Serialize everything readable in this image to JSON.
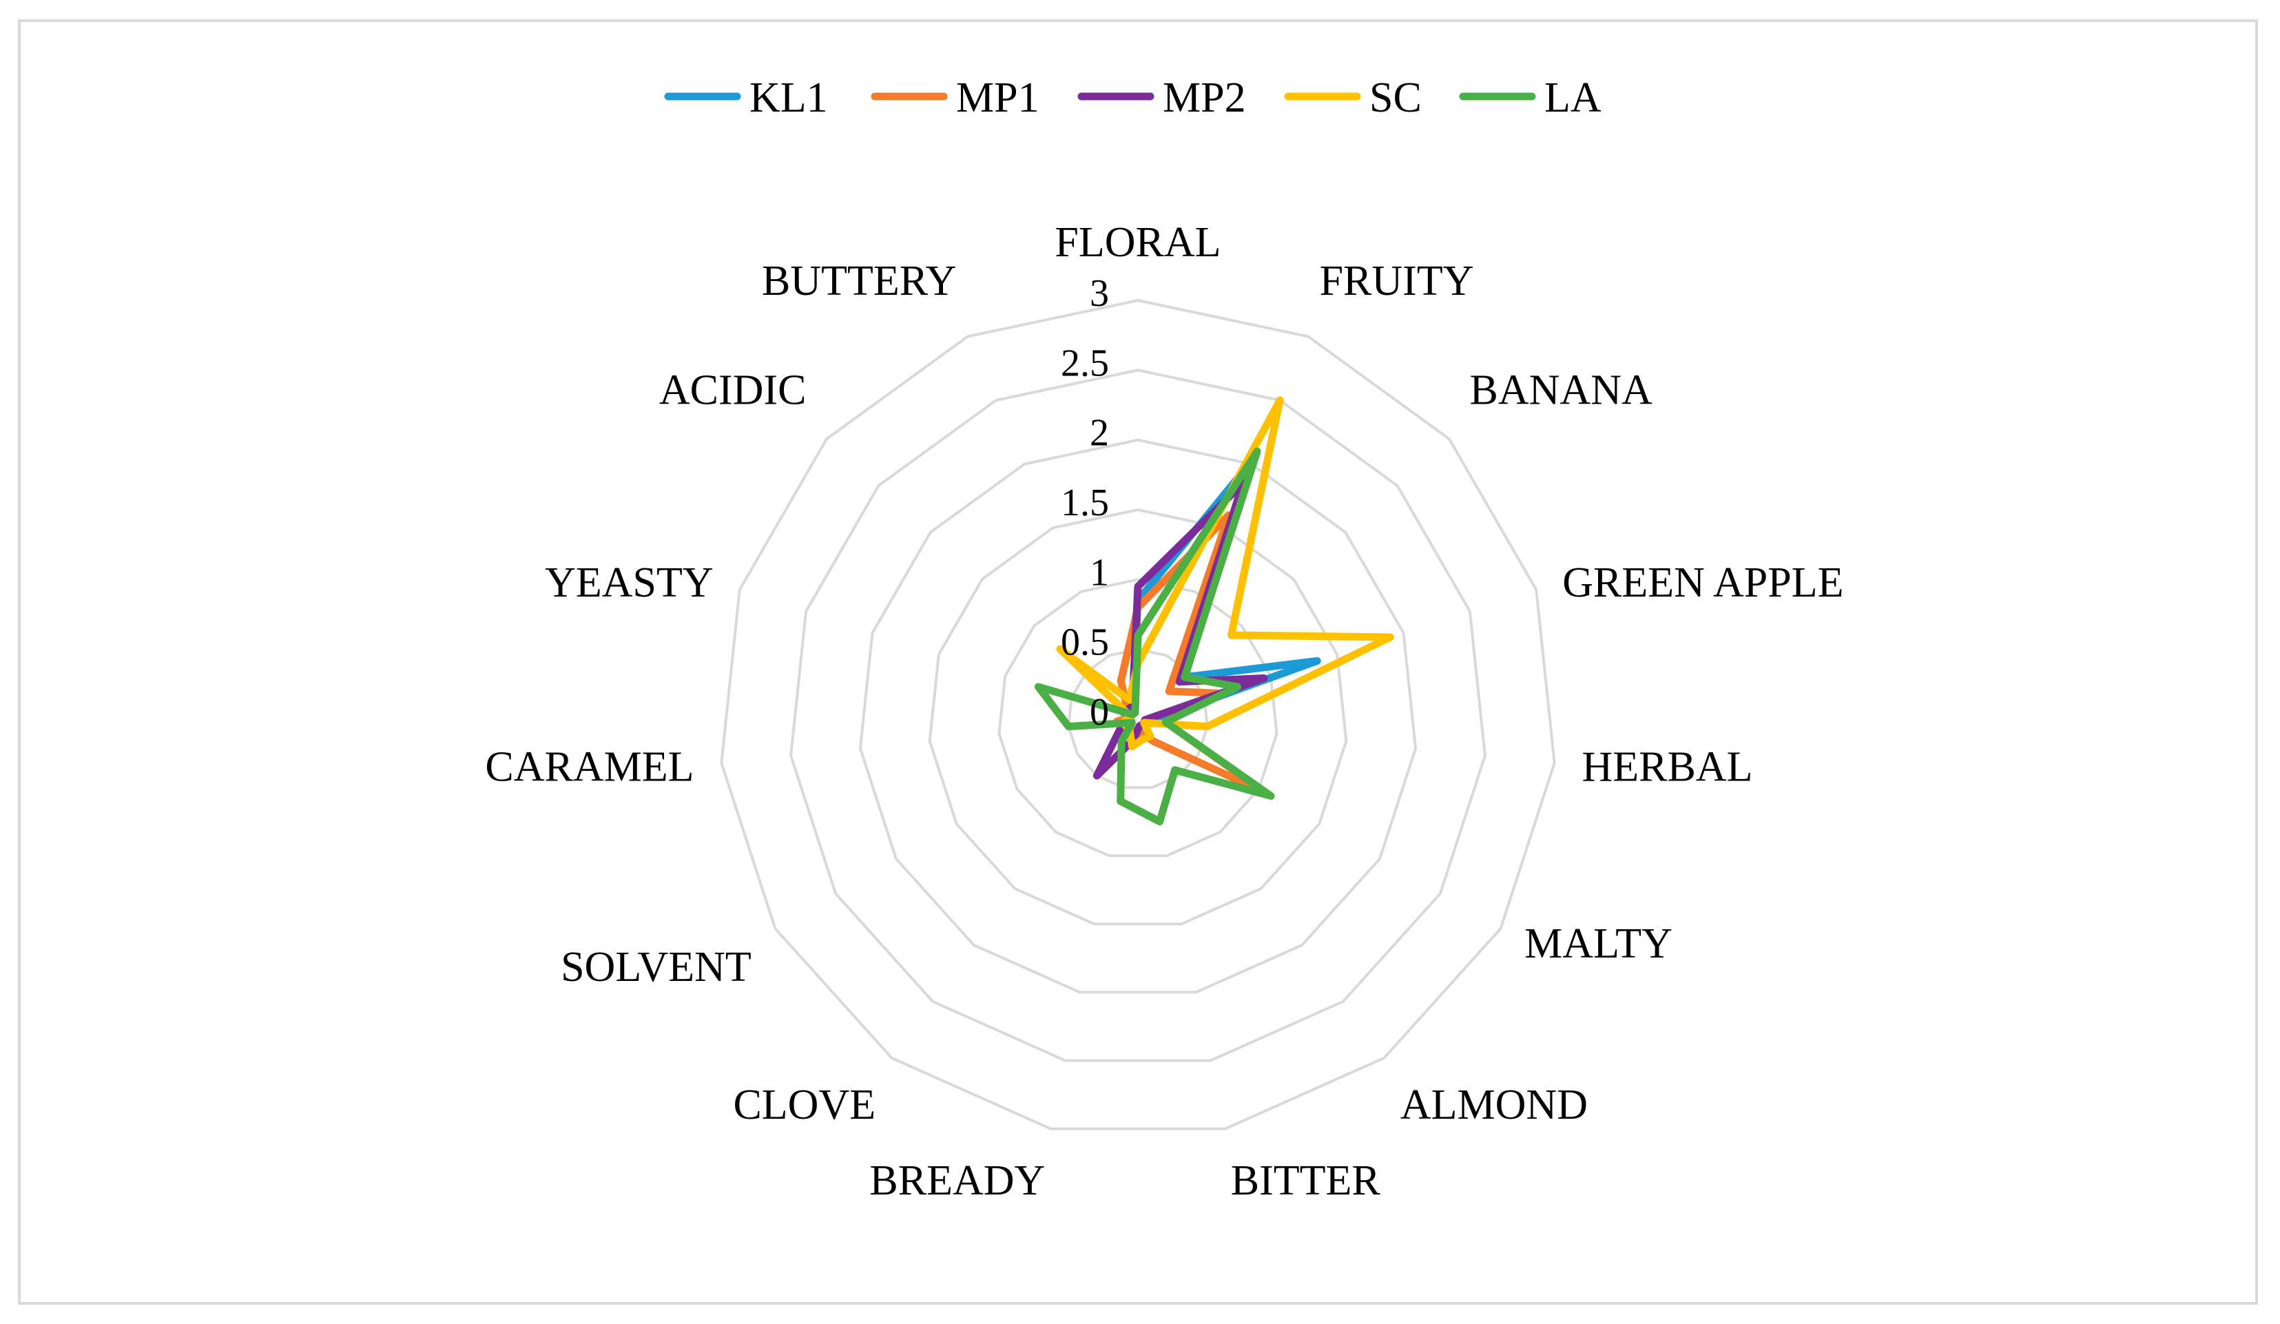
{
  "chart_data": {
    "type": "radar",
    "title": "",
    "categories": [
      "FLORAL",
      "FRUITY",
      "BANANA",
      "GREEN APPLE",
      "HERBAL",
      "MALTY",
      "ALMOND",
      "BITTER",
      "BREADY",
      "CLOVE",
      "SOLVENT",
      "CARAMEL",
      "YEASTY",
      "ACIDIC",
      "BUTTERY"
    ],
    "rlim": [
      0,
      3
    ],
    "rticks": [
      "0",
      "0.5",
      "1",
      "1.5",
      "2",
      "2.5",
      "3"
    ],
    "grid": true,
    "legend_position": "top",
    "series": [
      {
        "name": "KL1",
        "color": "#1c9ad6",
        "values": [
          0.85,
          2.05,
          0.45,
          1.35,
          0.1,
          0.05,
          0.05,
          0.15,
          0.1,
          0.1,
          0.05,
          0.05,
          0.1,
          0.05,
          0.1
        ]
      },
      {
        "name": "MP1",
        "color": "#f47b2a",
        "values": [
          0.8,
          1.6,
          0.3,
          0.6,
          0.2,
          1.05,
          0.2,
          0.1,
          0.1,
          0.1,
          0.05,
          0.15,
          0.05,
          0.1,
          0.3
        ]
      },
      {
        "name": "MP2",
        "color": "#7b2c9a",
        "values": [
          0.95,
          1.85,
          0.4,
          0.95,
          0.05,
          0.05,
          0.05,
          0.05,
          0.15,
          0.5,
          0.15,
          0.1,
          0.05,
          0.1,
          0.1
        ]
      },
      {
        "name": "SC",
        "color": "#ffc000",
        "values": [
          0.4,
          2.5,
          0.9,
          1.9,
          0.5,
          0.05,
          0.15,
          0.15,
          0.2,
          0.1,
          0.1,
          0.1,
          0.05,
          0.75,
          0.15
        ]
      },
      {
        "name": "LA",
        "color": "#4aaf45",
        "values": [
          0.6,
          2.1,
          0.45,
          0.75,
          0.2,
          1.1,
          0.45,
          0.75,
          0.6,
          0.2,
          0.05,
          0.5,
          0.75,
          0.05,
          0.05
        ]
      }
    ]
  }
}
